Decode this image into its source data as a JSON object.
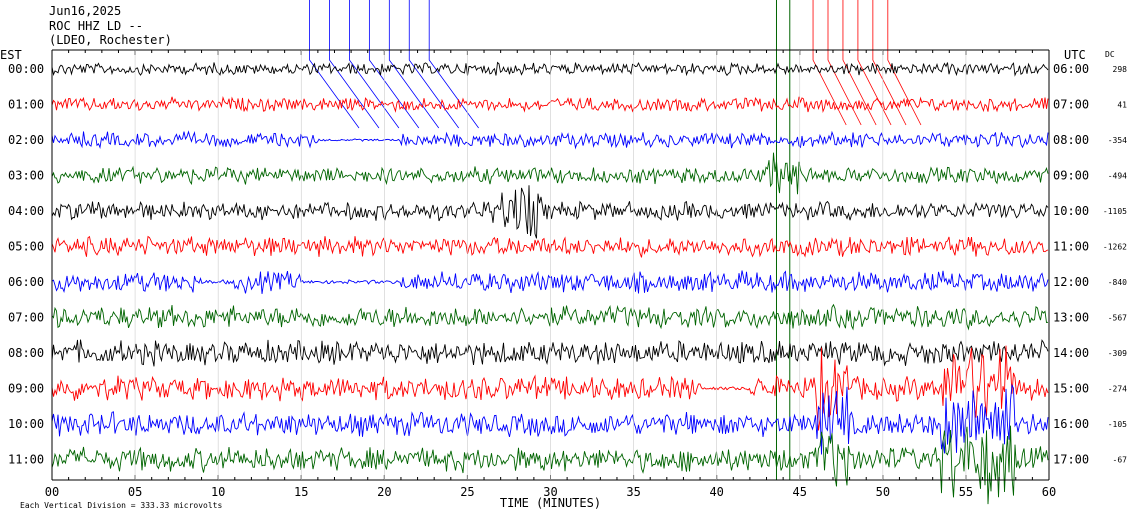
{
  "header": {
    "date": "Jun16,2025",
    "station": "ROC HHZ LD --",
    "network": "(LDEO, Rochester)"
  },
  "chart_data": {
    "type": "line",
    "title": "Jun16,2025",
    "left_axis_label": "EST",
    "right_axis_label": "UTC",
    "dc_label": "DC",
    "xlabel": "TIME (MINUTES)",
    "xlim": [
      0,
      60
    ],
    "x_ticks": [
      "00",
      "05",
      "10",
      "15",
      "20",
      "25",
      "30",
      "35",
      "40",
      "45",
      "50",
      "55",
      "60"
    ],
    "footer_note": "Each Vertical Division = 333.33 microvolts",
    "trace_colors": [
      "#000000",
      "#ff0000",
      "#0000ff",
      "#006400"
    ],
    "rows": [
      {
        "est": "00:00",
        "utc": "06:00",
        "dc": "298"
      },
      {
        "est": "01:00",
        "utc": "07:00",
        "dc": "41"
      },
      {
        "est": "02:00",
        "utc": "08:00",
        "dc": "-354"
      },
      {
        "est": "03:00",
        "utc": "09:00",
        "dc": "-494"
      },
      {
        "est": "04:00",
        "utc": "10:00",
        "dc": "-1105"
      },
      {
        "est": "05:00",
        "utc": "11:00",
        "dc": "-1262"
      },
      {
        "est": "06:00",
        "utc": "12:00",
        "dc": "-840"
      },
      {
        "est": "07:00",
        "utc": "13:00",
        "dc": "-567"
      },
      {
        "est": "08:00",
        "utc": "14:00",
        "dc": "-309"
      },
      {
        "est": "09:00",
        "utc": "15:00",
        "dc": "-274"
      },
      {
        "est": "10:00",
        "utc": "16:00",
        "dc": "-105"
      },
      {
        "est": "11:00",
        "utc": "17:00",
        "dc": "-67"
      }
    ]
  }
}
